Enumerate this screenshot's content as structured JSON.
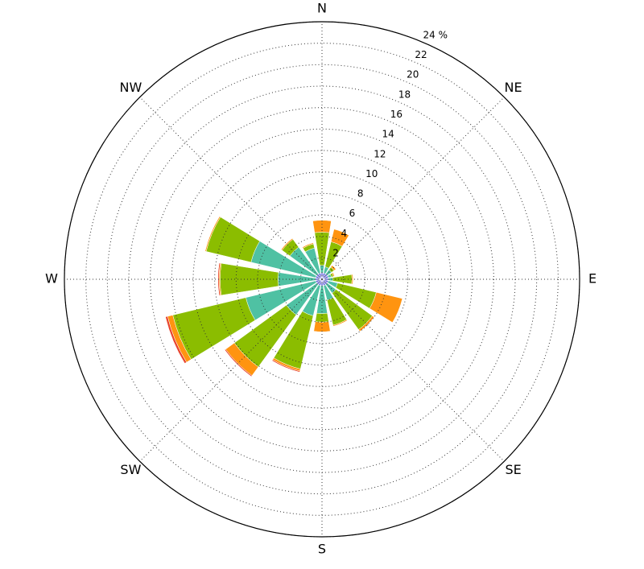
{
  "chart_data": {
    "type": "windrose",
    "x": [
      0,
      22.5,
      45,
      67.5,
      90,
      112.5,
      135,
      157.5,
      180,
      202.5,
      225,
      247.5,
      270,
      292.5,
      315,
      337.5
    ],
    "xticks": [
      {
        "value": 0,
        "label": "N"
      },
      {
        "value": 45,
        "label": "NE"
      },
      {
        "value": 90,
        "label": "E"
      },
      {
        "value": 135,
        "label": "SE"
      },
      {
        "value": 180,
        "label": "S"
      },
      {
        "value": 225,
        "label": "SW"
      },
      {
        "value": 270,
        "label": "W"
      },
      {
        "value": 315,
        "label": "NW"
      }
    ],
    "ylim": [
      0,
      24
    ],
    "yticks": [
      2,
      4,
      6,
      8,
      10,
      12,
      14,
      16,
      18,
      20,
      22,
      {
        "value": 24,
        "label": "24 %"
      }
    ],
    "grid": true,
    "series": [
      {
        "color": "#5a5ad8",
        "values": [
          0.6,
          0.6,
          0.6,
          0.6,
          0.6,
          0.6,
          0.6,
          0.6,
          0.6,
          0.6,
          0.6,
          0.6,
          0.6,
          0.6,
          0.6,
          0.6
        ]
      },
      {
        "color": "#4fc1a3",
        "values": [
          0.7,
          0.6,
          0.5,
          0.3,
          0.4,
          0.9,
          1.0,
          1.4,
          2.6,
          2.9,
          3.5,
          6.7,
          3.5,
          6.2,
          3.1,
          2.4
        ]
      },
      {
        "color": "#8bbd00",
        "values": [
          3.1,
          2.4,
          0.3,
          0.2,
          1.8,
          3.7,
          4.2,
          2.4,
          0.8,
          5.1,
          6.0,
          7.0,
          5.4,
          4.3,
          0.9,
          0.4
        ]
      },
      {
        "color": "#ff9410",
        "values": [
          1.1,
          1.2,
          0.2,
          0.1,
          0.1,
          2.5,
          0.2,
          0.1,
          0.9,
          0.2,
          1.0,
          0.5,
          0.1,
          0.1,
          0.1,
          0.1
        ]
      },
      {
        "color": "#e8432c",
        "values": [
          0,
          0,
          0,
          0,
          0,
          0,
          0,
          0,
          0,
          0.1,
          0.1,
          0.2,
          0.1,
          0,
          0,
          0
        ]
      }
    ]
  }
}
